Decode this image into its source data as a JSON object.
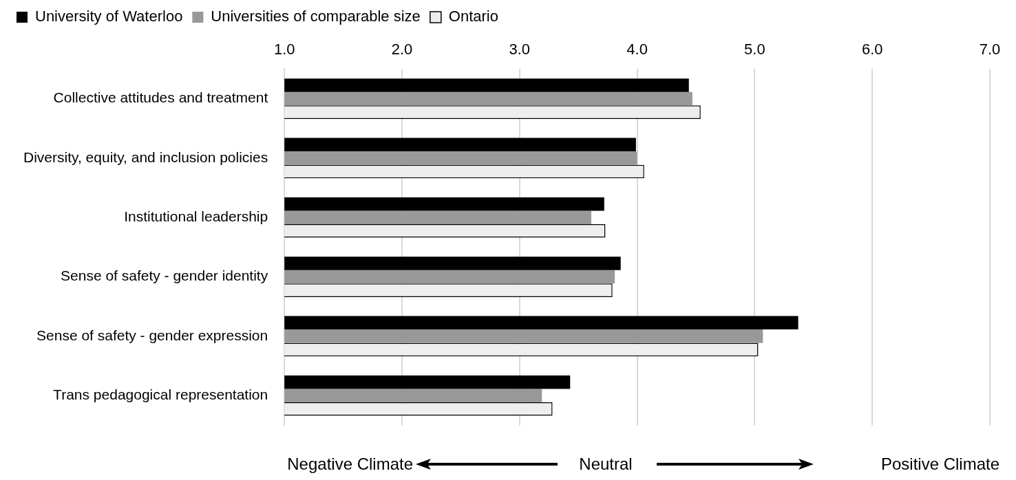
{
  "chart_data": {
    "type": "bar",
    "orientation": "horizontal",
    "categories": [
      "Collective attitudes and treatment",
      "Diversity, equity, and inclusion policies",
      "Institutional leadership",
      "Sense of safety - gender identity",
      "Sense of safety - gender expression",
      "Trans pedagogical representation"
    ],
    "series": [
      {
        "name": "University of Waterloo",
        "color": "#000000",
        "values": [
          4.44,
          3.99,
          3.72,
          3.86,
          5.37,
          3.43
        ]
      },
      {
        "name": "Universities of comparable size",
        "color": "#999999",
        "values": [
          4.47,
          4.0,
          3.61,
          3.81,
          5.07,
          3.19
        ]
      },
      {
        "name": "Ontario",
        "color": "#eeeeee",
        "values": [
          4.54,
          4.06,
          3.73,
          3.79,
          5.03,
          3.28
        ]
      }
    ],
    "xlim": [
      1,
      7
    ],
    "xticks": [
      {
        "value": 1,
        "label": "1.0"
      },
      {
        "value": 2,
        "label": "2.0"
      },
      {
        "value": 3,
        "label": "3.0"
      },
      {
        "value": 4,
        "label": "4.0"
      },
      {
        "value": 5,
        "label": "5.0"
      },
      {
        "value": 6,
        "label": "6.0"
      },
      {
        "value": 7,
        "label": "7.0"
      }
    ],
    "grid": "x",
    "legend": "top left",
    "annotations": [
      "Negative Climate",
      "Neutral",
      "Positive Climate"
    ]
  }
}
